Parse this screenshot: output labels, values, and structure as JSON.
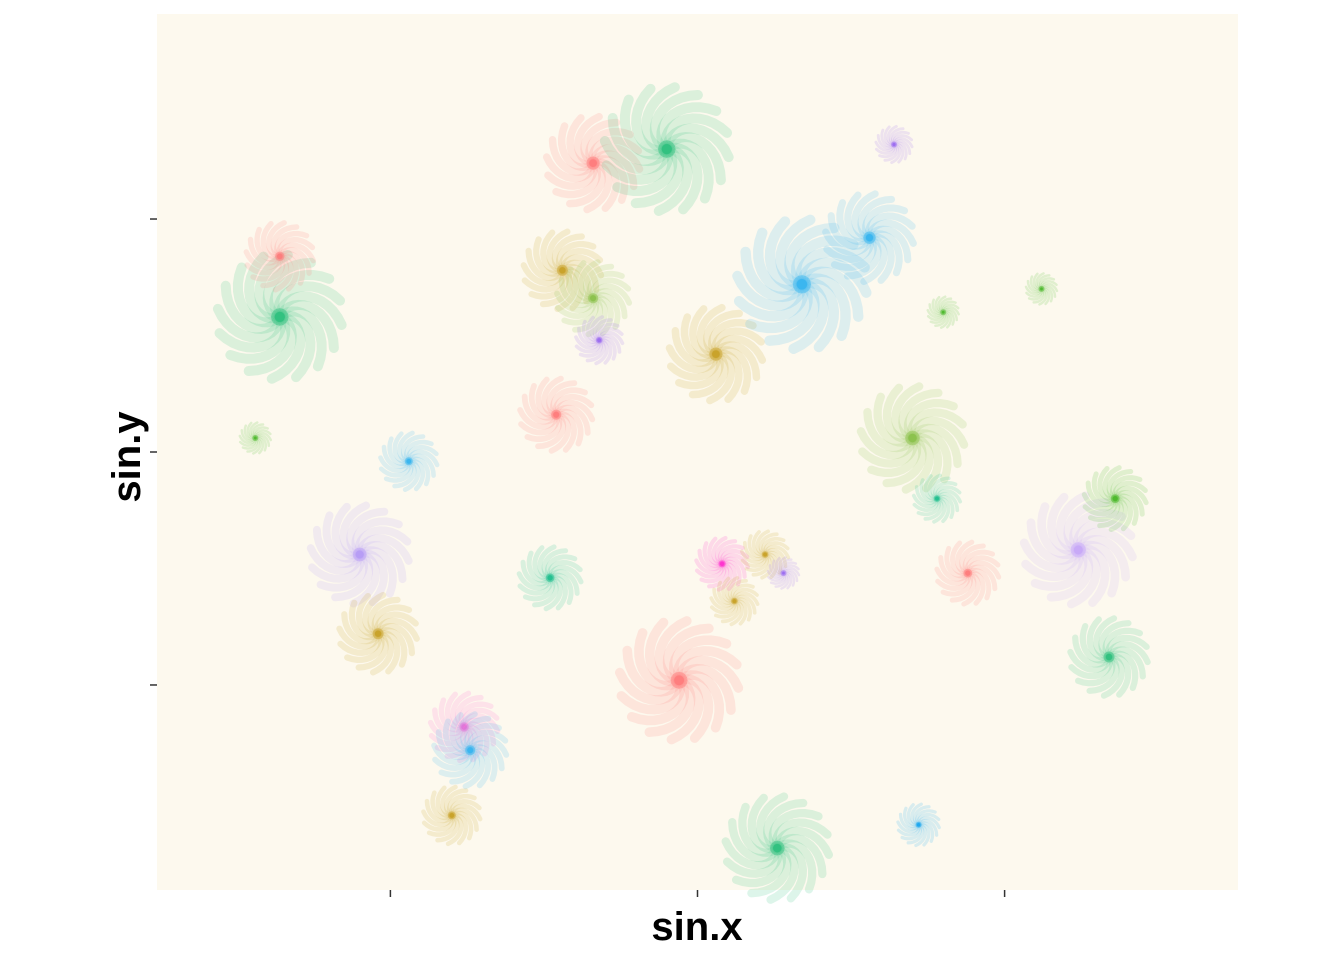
{
  "chart_data": {
    "type": "scatter",
    "title": "",
    "xlabel": "sin.x",
    "ylabel": "sin.y",
    "x_ticks": [
      -0.5,
      0.0,
      0.5
    ],
    "y_ticks": [
      -0.5,
      0.0,
      0.5
    ],
    "x_tick_labels_shown": false,
    "y_tick_labels_shown": false,
    "xlim": [
      -0.88,
      0.88
    ],
    "ylim": [
      -0.94,
      0.94
    ],
    "grid": false,
    "legend": "none",
    "panel_background": "#fdf9ee",
    "glyph": "spiral-rosette",
    "points": [
      {
        "x": -0.68,
        "y": 0.29,
        "size": 1.2,
        "color": "#2ec27e"
      },
      {
        "x": -0.68,
        "y": 0.42,
        "size": 0.65,
        "color": "#ff7b7b"
      },
      {
        "x": -0.72,
        "y": 0.03,
        "size": 0.3,
        "color": "#4cb82b"
      },
      {
        "x": -0.47,
        "y": -0.02,
        "size": 0.55,
        "color": "#35b6f0"
      },
      {
        "x": -0.55,
        "y": -0.22,
        "size": 0.95,
        "color": "#b79cf7"
      },
      {
        "x": -0.52,
        "y": -0.39,
        "size": 0.75,
        "color": "#c9a227"
      },
      {
        "x": -0.38,
        "y": -0.59,
        "size": 0.65,
        "color": "#ff6bd6"
      },
      {
        "x": -0.37,
        "y": -0.64,
        "size": 0.7,
        "color": "#35b6f0"
      },
      {
        "x": -0.4,
        "y": -0.78,
        "size": 0.55,
        "color": "#c9a227"
      },
      {
        "x": -0.24,
        "y": -0.27,
        "size": 0.6,
        "color": "#1fbf8f"
      },
      {
        "x": -0.23,
        "y": 0.08,
        "size": 0.7,
        "color": "#ff7b7b"
      },
      {
        "x": -0.22,
        "y": 0.39,
        "size": 0.75,
        "color": "#c9a227"
      },
      {
        "x": -0.17,
        "y": 0.33,
        "size": 0.7,
        "color": "#8bc34a"
      },
      {
        "x": -0.16,
        "y": 0.24,
        "size": 0.45,
        "color": "#9b6cf2"
      },
      {
        "x": -0.17,
        "y": 0.62,
        "size": 0.9,
        "color": "#ff7b7b"
      },
      {
        "x": -0.05,
        "y": 0.65,
        "size": 1.2,
        "color": "#2ec27e"
      },
      {
        "x": 0.03,
        "y": 0.21,
        "size": 0.9,
        "color": "#c9a227"
      },
      {
        "x": -0.03,
        "y": -0.49,
        "size": 1.15,
        "color": "#ff7b7b"
      },
      {
        "x": 0.04,
        "y": -0.24,
        "size": 0.5,
        "color": "#ff2fd0"
      },
      {
        "x": 0.06,
        "y": -0.32,
        "size": 0.45,
        "color": "#c9a227"
      },
      {
        "x": 0.11,
        "y": -0.22,
        "size": 0.45,
        "color": "#c9a227"
      },
      {
        "x": 0.14,
        "y": -0.26,
        "size": 0.3,
        "color": "#9b6cf2"
      },
      {
        "x": 0.13,
        "y": -0.85,
        "size": 1.0,
        "color": "#2ec27e"
      },
      {
        "x": 0.17,
        "y": 0.36,
        "size": 1.25,
        "color": "#35b6f0"
      },
      {
        "x": 0.28,
        "y": 0.46,
        "size": 0.85,
        "color": "#35b6f0"
      },
      {
        "x": 0.32,
        "y": 0.66,
        "size": 0.35,
        "color": "#9b6cf2"
      },
      {
        "x": 0.35,
        "y": 0.03,
        "size": 1.0,
        "color": "#8bc34a"
      },
      {
        "x": 0.39,
        "y": -0.1,
        "size": 0.45,
        "color": "#1fbf8f"
      },
      {
        "x": 0.36,
        "y": -0.8,
        "size": 0.4,
        "color": "#1aa7f0"
      },
      {
        "x": 0.4,
        "y": 0.3,
        "size": 0.3,
        "color": "#4cb82b"
      },
      {
        "x": 0.44,
        "y": -0.26,
        "size": 0.6,
        "color": "#ff7b7b"
      },
      {
        "x": 0.56,
        "y": 0.35,
        "size": 0.3,
        "color": "#4cb82b"
      },
      {
        "x": 0.62,
        "y": -0.21,
        "size": 1.05,
        "color": "#c7a8fa"
      },
      {
        "x": 0.68,
        "y": -0.1,
        "size": 0.6,
        "color": "#4cb82b"
      },
      {
        "x": 0.67,
        "y": -0.44,
        "size": 0.75,
        "color": "#2ec27e"
      }
    ]
  }
}
